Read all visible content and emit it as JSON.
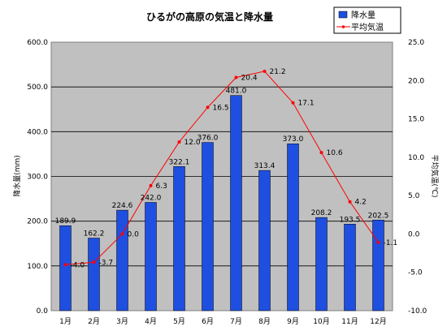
{
  "chart_data": {
    "type": "bar+line",
    "title": "ひるがの高原の気温と降水量",
    "categories": [
      "1月",
      "2月",
      "3月",
      "4月",
      "5月",
      "6月",
      "7月",
      "8月",
      "9月",
      "10月",
      "11月",
      "12月"
    ],
    "series": [
      {
        "name": "降水量",
        "kind": "bar",
        "axis": "left",
        "color": "#1f4fe0",
        "values": [
          189.9,
          162.2,
          224.6,
          242.0,
          322.1,
          376.0,
          481.0,
          313.4,
          373.0,
          208.2,
          193.5,
          202.5
        ],
        "labels": [
          "189.9",
          "162.2",
          "224.6",
          "242.0",
          "322.1",
          "376.0",
          "481.0",
          "313.4",
          "373.0",
          "208.2",
          "193.5",
          "202.5"
        ]
      },
      {
        "name": "平均気温",
        "kind": "line",
        "axis": "right",
        "color": "#ff0000",
        "values": [
          -4.0,
          -3.7,
          0.0,
          6.3,
          12.0,
          16.5,
          20.4,
          21.2,
          17.1,
          10.6,
          4.2,
          -1.1
        ],
        "labels": [
          "-4.0",
          "-3.7",
          "0.0",
          "6.3",
          "12.0",
          "16.5",
          "20.4",
          "21.2",
          "17.1",
          "10.6",
          "4.2",
          "-1.1"
        ]
      }
    ],
    "ylabel": "降水量(mm)",
    "y2label": "平均気温(℃)",
    "ylim": [
      0,
      600
    ],
    "y2lim": [
      -10,
      25
    ],
    "yticks": [
      "0.0",
      "100.0",
      "200.0",
      "300.0",
      "400.0",
      "500.0",
      "600.0"
    ],
    "y2ticks": [
      "-10.0",
      "-5.0",
      "0.0",
      "5.0",
      "10.0",
      "15.0",
      "20.0",
      "25.0"
    ],
    "grid": true,
    "legend": "top-right"
  }
}
